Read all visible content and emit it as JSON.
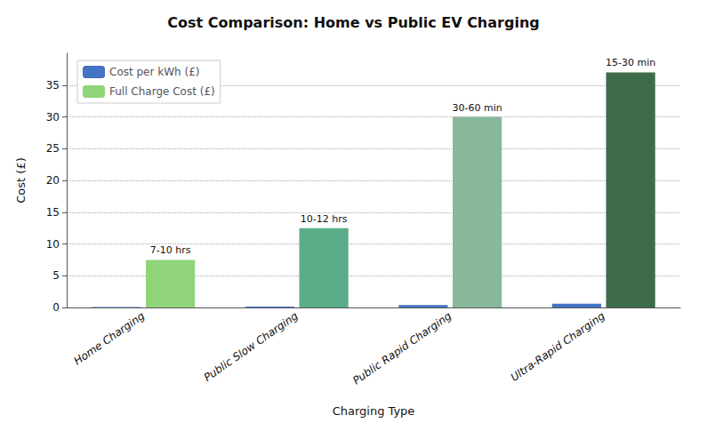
{
  "chart_data": {
    "type": "bar",
    "title": "Cost Comparison: Home vs Public EV Charging",
    "xlabel": "Charging Type",
    "ylabel": "Cost (£)",
    "categories": [
      "Home Charging",
      "Public Slow Charging",
      "Public Rapid Charging",
      "Ultra-Rapid Charging"
    ],
    "series": [
      {
        "name": "Cost per kWh (£)",
        "color": "#4472C4",
        "values": [
          0.07,
          0.15,
          0.4,
          0.6
        ]
      },
      {
        "name": "Full Charge Cost (£)",
        "color": "#90D47A",
        "colors": [
          "#90D47A",
          "#5BAD8A",
          "#88B89A",
          "#3D6B4A"
        ],
        "values": [
          7.5,
          12.5,
          30.0,
          37.0
        ],
        "annotations": [
          "7-10 hrs",
          "10-12 hrs",
          "30-60 min",
          "15-30 min"
        ]
      }
    ],
    "ylim": [
      0,
      40
    ],
    "yticks": [
      0,
      5,
      10,
      15,
      20,
      25,
      30,
      35
    ],
    "grid": true,
    "legend": "upper left"
  }
}
